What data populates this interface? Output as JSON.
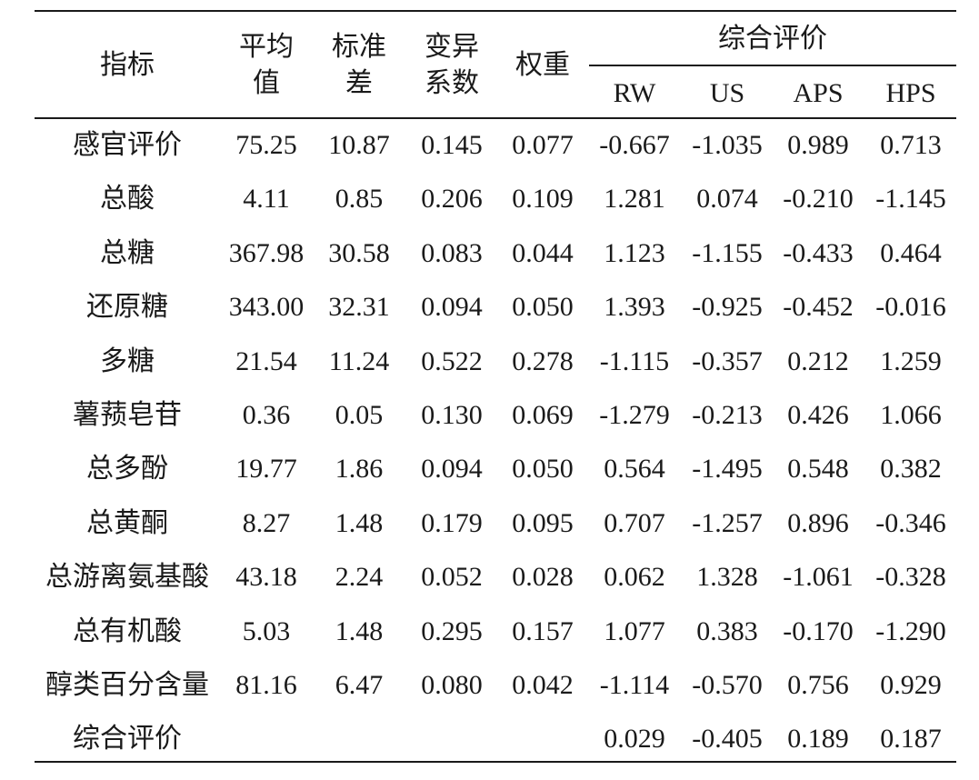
{
  "table": {
    "header": {
      "columns": [
        "指标",
        "平均值",
        "标准差",
        "变异系数",
        "权重"
      ],
      "group": "综合评价",
      "subcolumns": [
        "RW",
        "US",
        "APS",
        "HPS"
      ]
    },
    "rows": [
      {
        "label": "感官评价",
        "values": [
          "75.25",
          "10.87",
          "0.145",
          "0.077",
          "-0.667",
          "-1.035",
          "0.989",
          "0.713"
        ]
      },
      {
        "label": "总酸",
        "values": [
          "4.11",
          "0.85",
          "0.206",
          "0.109",
          "1.281",
          "0.074",
          "-0.210",
          "-1.145"
        ]
      },
      {
        "label": "总糖",
        "values": [
          "367.98",
          "30.58",
          "0.083",
          "0.044",
          "1.123",
          "-1.155",
          "-0.433",
          "0.464"
        ]
      },
      {
        "label": "还原糖",
        "values": [
          "343.00",
          "32.31",
          "0.094",
          "0.050",
          "1.393",
          "-0.925",
          "-0.452",
          "-0.016"
        ]
      },
      {
        "label": "多糖",
        "values": [
          "21.54",
          "11.24",
          "0.522",
          "0.278",
          "-1.115",
          "-0.357",
          "0.212",
          "1.259"
        ]
      },
      {
        "label": "薯蓣皂苷",
        "values": [
          "0.36",
          "0.05",
          "0.130",
          "0.069",
          "-1.279",
          "-0.213",
          "0.426",
          "1.066"
        ]
      },
      {
        "label": "总多酚",
        "values": [
          "19.77",
          "1.86",
          "0.094",
          "0.050",
          "0.564",
          "-1.495",
          "0.548",
          "0.382"
        ]
      },
      {
        "label": "总黄酮",
        "values": [
          "8.27",
          "1.48",
          "0.179",
          "0.095",
          "0.707",
          "-1.257",
          "0.896",
          "-0.346"
        ]
      },
      {
        "label": "总游离氨基酸",
        "values": [
          "43.18",
          "2.24",
          "0.052",
          "0.028",
          "0.062",
          "1.328",
          "-1.061",
          "-0.328"
        ]
      },
      {
        "label": "总有机酸",
        "values": [
          "5.03",
          "1.48",
          "0.295",
          "0.157",
          "1.077",
          "0.383",
          "-0.170",
          "-1.290"
        ]
      },
      {
        "label": "醇类百分含量",
        "values": [
          "81.16",
          "6.47",
          "0.080",
          "0.042",
          "-1.114",
          "-0.570",
          "0.756",
          "0.929"
        ]
      }
    ],
    "summary": {
      "label": "综合评价",
      "values": [
        "0.029",
        "-0.405",
        "0.189",
        "0.187"
      ]
    }
  }
}
